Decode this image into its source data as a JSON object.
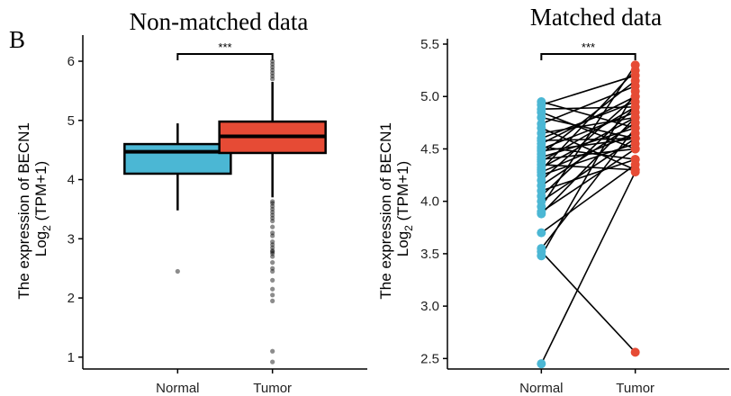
{
  "panel_letter": "B",
  "chart_data": [
    {
      "type": "box",
      "title": "Non-matched data",
      "ylabel_line1": "The expression of BECN1",
      "ylabel_line2_main": "Log",
      "ylabel_line2_sub": "2",
      "ylabel_line2_rest": " (TPM+1)",
      "categories": [
        "Normal",
        "Tumor"
      ],
      "ylim": [
        0.8,
        6.35
      ],
      "yticks": [
        1,
        2,
        3,
        4,
        5,
        6
      ],
      "significance": "***",
      "colors": {
        "Normal": "#4bb7d4",
        "Tumor": "#e64b35"
      },
      "boxes": [
        {
          "name": "Normal",
          "min": 3.48,
          "q1": 4.1,
          "median": 4.47,
          "q3": 4.6,
          "max": 4.95,
          "outliers": [
            2.45
          ]
        },
        {
          "name": "Tumor",
          "min": 3.7,
          "q1": 4.45,
          "median": 4.73,
          "q3": 4.98,
          "max": 5.65,
          "outliers": [
            6.0,
            5.95,
            5.9,
            5.85,
            5.8,
            5.75,
            5.7,
            3.63,
            3.6,
            3.55,
            3.5,
            3.45,
            3.4,
            3.35,
            3.3,
            3.2,
            3.1,
            3.05,
            2.95,
            2.9,
            2.85,
            2.8,
            2.78,
            2.75,
            2.7,
            2.6,
            2.5,
            2.45,
            2.3,
            2.15,
            2.05,
            1.95,
            1.1,
            0.92
          ]
        }
      ]
    },
    {
      "type": "paired",
      "title": "Matched data",
      "ylabel_line1": "The expression of BECN1",
      "ylabel_line2_main": "Log",
      "ylabel_line2_sub": "2",
      "ylabel_line2_rest": " (TPM+1)",
      "categories": [
        "Normal",
        "Tumor"
      ],
      "ylim": [
        2.4,
        5.5
      ],
      "yticks": [
        "2.5",
        "3.0",
        "3.5",
        "4.0",
        "4.5",
        "5.0",
        "5.5"
      ],
      "significance": "***",
      "colors": {
        "Normal": "#4bb7d4",
        "Tumor": "#e64b35"
      },
      "pairs": [
        [
          4.95,
          4.7
        ],
        [
          4.92,
          5.2
        ],
        [
          4.88,
          4.9
        ],
        [
          4.85,
          4.5
        ],
        [
          4.8,
          4.6
        ],
        [
          4.74,
          5.1
        ],
        [
          4.7,
          4.3
        ],
        [
          4.65,
          4.8
        ],
        [
          4.6,
          4.95
        ],
        [
          4.58,
          4.6
        ],
        [
          4.55,
          5.0
        ],
        [
          4.52,
          4.4
        ],
        [
          4.5,
          4.85
        ],
        [
          4.48,
          4.6
        ],
        [
          4.45,
          5.15
        ],
        [
          4.42,
          4.7
        ],
        [
          4.4,
          4.5
        ],
        [
          4.38,
          4.9
        ],
        [
          4.35,
          4.3
        ],
        [
          4.32,
          4.8
        ],
        [
          4.3,
          5.25
        ],
        [
          4.28,
          4.65
        ],
        [
          4.25,
          4.55
        ],
        [
          4.2,
          5.0
        ],
        [
          4.15,
          4.75
        ],
        [
          4.1,
          4.4
        ],
        [
          4.05,
          4.9
        ],
        [
          4.0,
          4.6
        ],
        [
          3.95,
          5.3
        ],
        [
          3.9,
          4.5
        ],
        [
          3.88,
          4.8
        ],
        [
          3.7,
          4.35
        ],
        [
          3.55,
          4.7
        ],
        [
          3.52,
          2.56
        ],
        [
          3.48,
          5.05
        ],
        [
          2.45,
          4.28
        ]
      ]
    }
  ]
}
